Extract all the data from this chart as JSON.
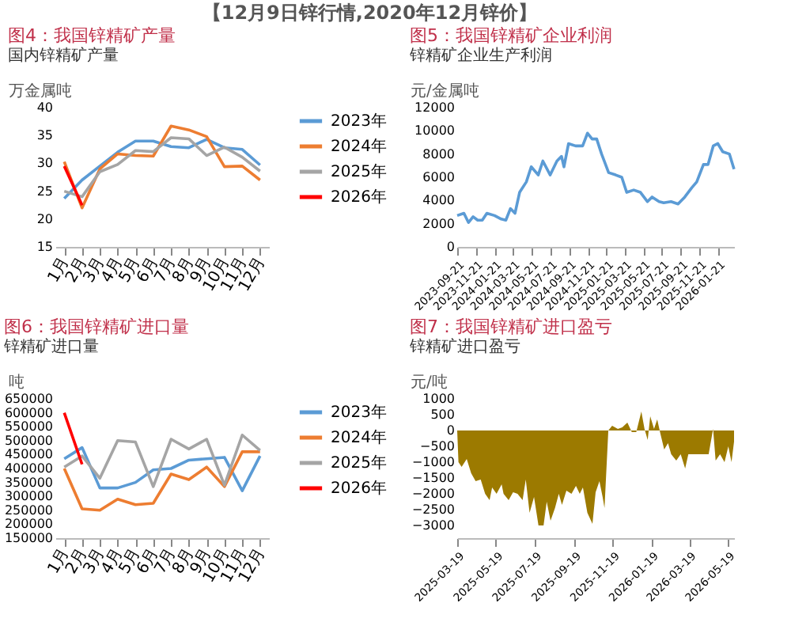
{
  "chart_data": [
    {
      "type": "line",
      "title": "图4：我国锌精矿产量",
      "subtitle": "国内锌精矿产量",
      "ylabel": "万金属吨",
      "annotations": [
        "【12月9日锌行情,2020年12月锌价】"
      ],
      "categories": [
        "1月",
        "2月",
        "3月",
        "4月",
        "5月",
        "6月",
        "7月",
        "8月",
        "9月",
        "10月",
        "11月",
        "12月"
      ],
      "ylim": [
        15,
        40
      ],
      "yticks": [
        15,
        20,
        25,
        30,
        35,
        40
      ],
      "legend": "right",
      "series": [
        {
          "name": "2023年",
          "color": "#5b9bd5",
          "values": [
            23.7,
            27,
            29.5,
            32,
            34,
            34,
            33,
            32.8,
            34.3,
            32.8,
            32.5,
            29.7
          ]
        },
        {
          "name": "2024年",
          "color": "#ed7d31",
          "values": [
            30.3,
            22,
            29,
            31.7,
            31.4,
            31.3,
            36.7,
            36,
            34.8,
            29.4,
            29.5,
            27
          ]
        },
        {
          "name": "2025年",
          "color": "#a5a5a5",
          "values": [
            25,
            24,
            28.5,
            29.8,
            32.3,
            32.1,
            34.6,
            34.4,
            31.4,
            32.9,
            31.1,
            28.6
          ]
        },
        {
          "name": "2026年",
          "color": "#ff0000",
          "values": [
            29.5,
            22.5,
            null,
            null,
            null,
            null,
            null,
            null,
            null,
            null,
            null,
            null
          ]
        }
      ]
    },
    {
      "type": "line",
      "title": "图5：我国锌精矿企业利润",
      "subtitle": "锌精矿企业生产利润",
      "ylabel": "元/金属吨",
      "ylim": [
        0,
        12000
      ],
      "yticks": [
        0,
        2000,
        4000,
        6000,
        8000,
        10000,
        12000
      ],
      "xlim": [
        "2023-09-21",
        "2026-03-14"
      ],
      "xticks": [
        "2023-09-21",
        "2023-11-21",
        "2024-01-21",
        "2024-03-21",
        "2024-05-21",
        "2024-07-21",
        "2024-09-21",
        "2024-11-21",
        "2025-01-21",
        "2025-03-21",
        "2025-05-21",
        "2025-07-21",
        "2025-09-21",
        "2025-11-21",
        "2026-01-21"
      ],
      "x": [
        "2023-09-21",
        "2023-10-13",
        "2023-10-28",
        "2023-11-12",
        "2023-11-27",
        "2023-12-12",
        "2023-12-27",
        "2024-01-21",
        "2024-02-12",
        "2024-02-27",
        "2024-03-13",
        "2024-03-28",
        "2024-04-12",
        "2024-05-04",
        "2024-05-20",
        "2024-06-12",
        "2024-06-27",
        "2024-07-21",
        "2024-08-12",
        "2024-08-27",
        "2024-09-04",
        "2024-09-19",
        "2024-10-12",
        "2024-11-04",
        "2024-11-20",
        "2024-12-05",
        "2024-12-20",
        "2025-01-05",
        "2025-01-28",
        "2025-02-20",
        "2025-03-12",
        "2025-03-28",
        "2025-04-20",
        "2025-05-12",
        "2025-06-04",
        "2025-06-19",
        "2025-07-12",
        "2025-07-27",
        "2025-08-20",
        "2025-09-12",
        "2025-10-04",
        "2025-10-27",
        "2025-11-12",
        "2025-12-04",
        "2025-12-19",
        "2026-01-05",
        "2026-01-20",
        "2026-02-05",
        "2026-02-27",
        "2026-03-14"
      ],
      "series": [
        {
          "color": "#5b9bd5",
          "values": [
            2700,
            2900,
            2100,
            2600,
            2300,
            2300,
            2900,
            2700,
            2400,
            2300,
            3300,
            2900,
            4700,
            5600,
            6900,
            6200,
            7400,
            6200,
            7400,
            7800,
            6900,
            8900,
            8700,
            8700,
            9800,
            9300,
            9300,
            8000,
            6400,
            6200,
            6000,
            4700,
            4900,
            4700,
            3900,
            4300,
            3900,
            3800,
            3900,
            3700,
            4300,
            5100,
            5600,
            7100,
            7100,
            8700,
            8900,
            8200,
            8000,
            6700
          ]
        }
      ]
    },
    {
      "type": "line",
      "title": "图6：我国锌精矿进口量",
      "subtitle": "锌精矿进口量",
      "ylabel": "吨",
      "categories": [
        "1月",
        "2月",
        "3月",
        "4月",
        "5月",
        "6月",
        "7月",
        "8月",
        "9月",
        "10月",
        "11月",
        "12月"
      ],
      "ylim": [
        150000,
        650000
      ],
      "yticks": [
        150000,
        200000,
        250000,
        300000,
        350000,
        400000,
        450000,
        500000,
        550000,
        600000,
        650000
      ],
      "legend": "right",
      "series": [
        {
          "name": "2023年",
          "color": "#5b9bd5",
          "values": [
            435000,
            475000,
            330000,
            330000,
            350000,
            395000,
            400000,
            430000,
            435000,
            440000,
            320000,
            445000
          ]
        },
        {
          "name": "2024年",
          "color": "#ed7d31",
          "values": [
            400000,
            255000,
            250000,
            290000,
            270000,
            275000,
            380000,
            360000,
            405000,
            335000,
            460000,
            460000
          ]
        },
        {
          "name": "2025年",
          "color": "#a5a5a5",
          "values": [
            405000,
            445000,
            365000,
            500000,
            495000,
            335000,
            505000,
            470000,
            505000,
            340000,
            520000,
            465000
          ]
        },
        {
          "name": "2026年",
          "color": "#ff0000",
          "values": [
            600000,
            415000,
            null,
            null,
            null,
            null,
            null,
            null,
            null,
            null,
            null,
            null
          ]
        }
      ]
    },
    {
      "type": "area",
      "title": "图7：我国锌精矿进口盈亏",
      "subtitle": "锌精矿进口盈亏",
      "ylabel": "元/吨",
      "ylim": [
        -3400,
        1000
      ],
      "yticks": [
        -3000,
        -2500,
        -2000,
        -1500,
        -1000,
        -500,
        0,
        500,
        1000
      ],
      "xlim": [
        "2025-03-19",
        "2026-05-29"
      ],
      "xticks": [
        "2025-03-19",
        "2025-05-19",
        "2025-07-19",
        "2025-09-19",
        "2025-11-19",
        "2026-01-19",
        "2026-03-19",
        "2026-05-19"
      ],
      "x": [
        "2025-03-19",
        "2025-03-21",
        "2025-03-26",
        "2025-04-03",
        "2025-04-10",
        "2025-04-17",
        "2025-04-25",
        "2025-05-02",
        "2025-05-09",
        "2025-05-13",
        "2025-05-20",
        "2025-05-28",
        "2025-05-31",
        "2025-06-08",
        "2025-06-15",
        "2025-06-22",
        "2025-06-30",
        "2025-07-05",
        "2025-07-11",
        "2025-07-18",
        "2025-07-25",
        "2025-08-02",
        "2025-08-07",
        "2025-08-13",
        "2025-08-20",
        "2025-08-26",
        "2025-08-31",
        "2025-09-07",
        "2025-09-15",
        "2025-09-22",
        "2025-09-28",
        "2025-10-03",
        "2025-10-10",
        "2025-10-18",
        "2025-10-23",
        "2025-10-29",
        "2025-11-03",
        "2025-11-06",
        "2025-11-12",
        "2025-11-18",
        "2025-11-27",
        "2025-12-04",
        "2025-12-12",
        "2025-12-19",
        "2025-12-26",
        "2026-01-03",
        "2026-01-08",
        "2026-01-13",
        "2026-01-17",
        "2026-01-23",
        "2026-01-28",
        "2026-02-02",
        "2026-02-08",
        "2026-02-14",
        "2026-02-19",
        "2026-02-27",
        "2026-03-06",
        "2026-03-13",
        "2026-03-18",
        "2026-03-28",
        "2026-04-08",
        "2026-04-19",
        "2026-04-26",
        "2026-04-30",
        "2026-05-07",
        "2026-05-14",
        "2026-05-20",
        "2026-05-25",
        "2026-05-29"
      ],
      "series": [
        {
          "color": "#9c7a00",
          "values": [
            0,
            -1000,
            -1150,
            -900,
            -1350,
            -1600,
            -1550,
            -2000,
            -2200,
            -1800,
            -2000,
            -1700,
            -2000,
            -2200,
            -1950,
            -2000,
            -2200,
            -1550,
            -2600,
            -2100,
            -3000,
            -3000,
            -2250,
            -2850,
            -2450,
            -2000,
            -2350,
            -1900,
            -2000,
            -1750,
            -2000,
            -1800,
            -2600,
            -2950,
            -1950,
            -1600,
            -2100,
            -2450,
            0,
            150,
            50,
            100,
            250,
            -50,
            -50,
            600,
            50,
            -300,
            450,
            50,
            350,
            -100,
            -600,
            -400,
            -750,
            -950,
            -750,
            -1200,
            -750,
            -750,
            -750,
            -750,
            50,
            -950,
            -750,
            -1000,
            -500,
            -1000,
            -350
          ]
        }
      ]
    }
  ]
}
